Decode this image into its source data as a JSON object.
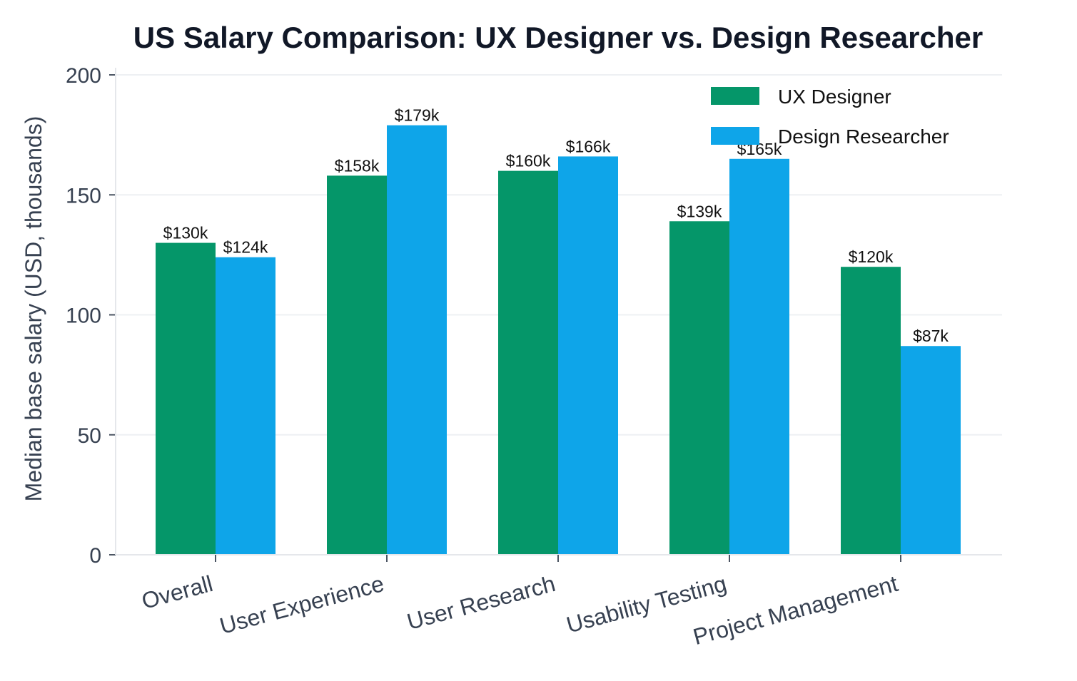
{
  "chart_data": {
    "type": "bar",
    "title": "US Salary Comparison: UX Designer vs. Design Researcher",
    "xlabel": "",
    "ylabel": "Median base salary (USD, thousands)",
    "ylim": [
      0,
      200
    ],
    "yticks": [
      0,
      50,
      100,
      150,
      200
    ],
    "grid": "horizontal",
    "legend_position": "top-right",
    "categories": [
      "Overall",
      "User Experience",
      "User Research",
      "Usability Testing",
      "Project Management"
    ],
    "series": [
      {
        "name": "UX Designer",
        "color": "#059669",
        "values": [
          130,
          158,
          160,
          139,
          120
        ],
        "labels": [
          "$130k",
          "$158k",
          "$160k",
          "$139k",
          "$120k"
        ]
      },
      {
        "name": "Design Researcher",
        "color": "#0EA5E9",
        "values": [
          124,
          179,
          166,
          165,
          87
        ],
        "labels": [
          "$124k",
          "$179k",
          "$166k",
          "$165k",
          "$87k"
        ]
      }
    ],
    "colors": {
      "axis": "#E5E7EB",
      "grid": "#EEF0F3",
      "tick": "#374151",
      "title": "#111827"
    }
  }
}
